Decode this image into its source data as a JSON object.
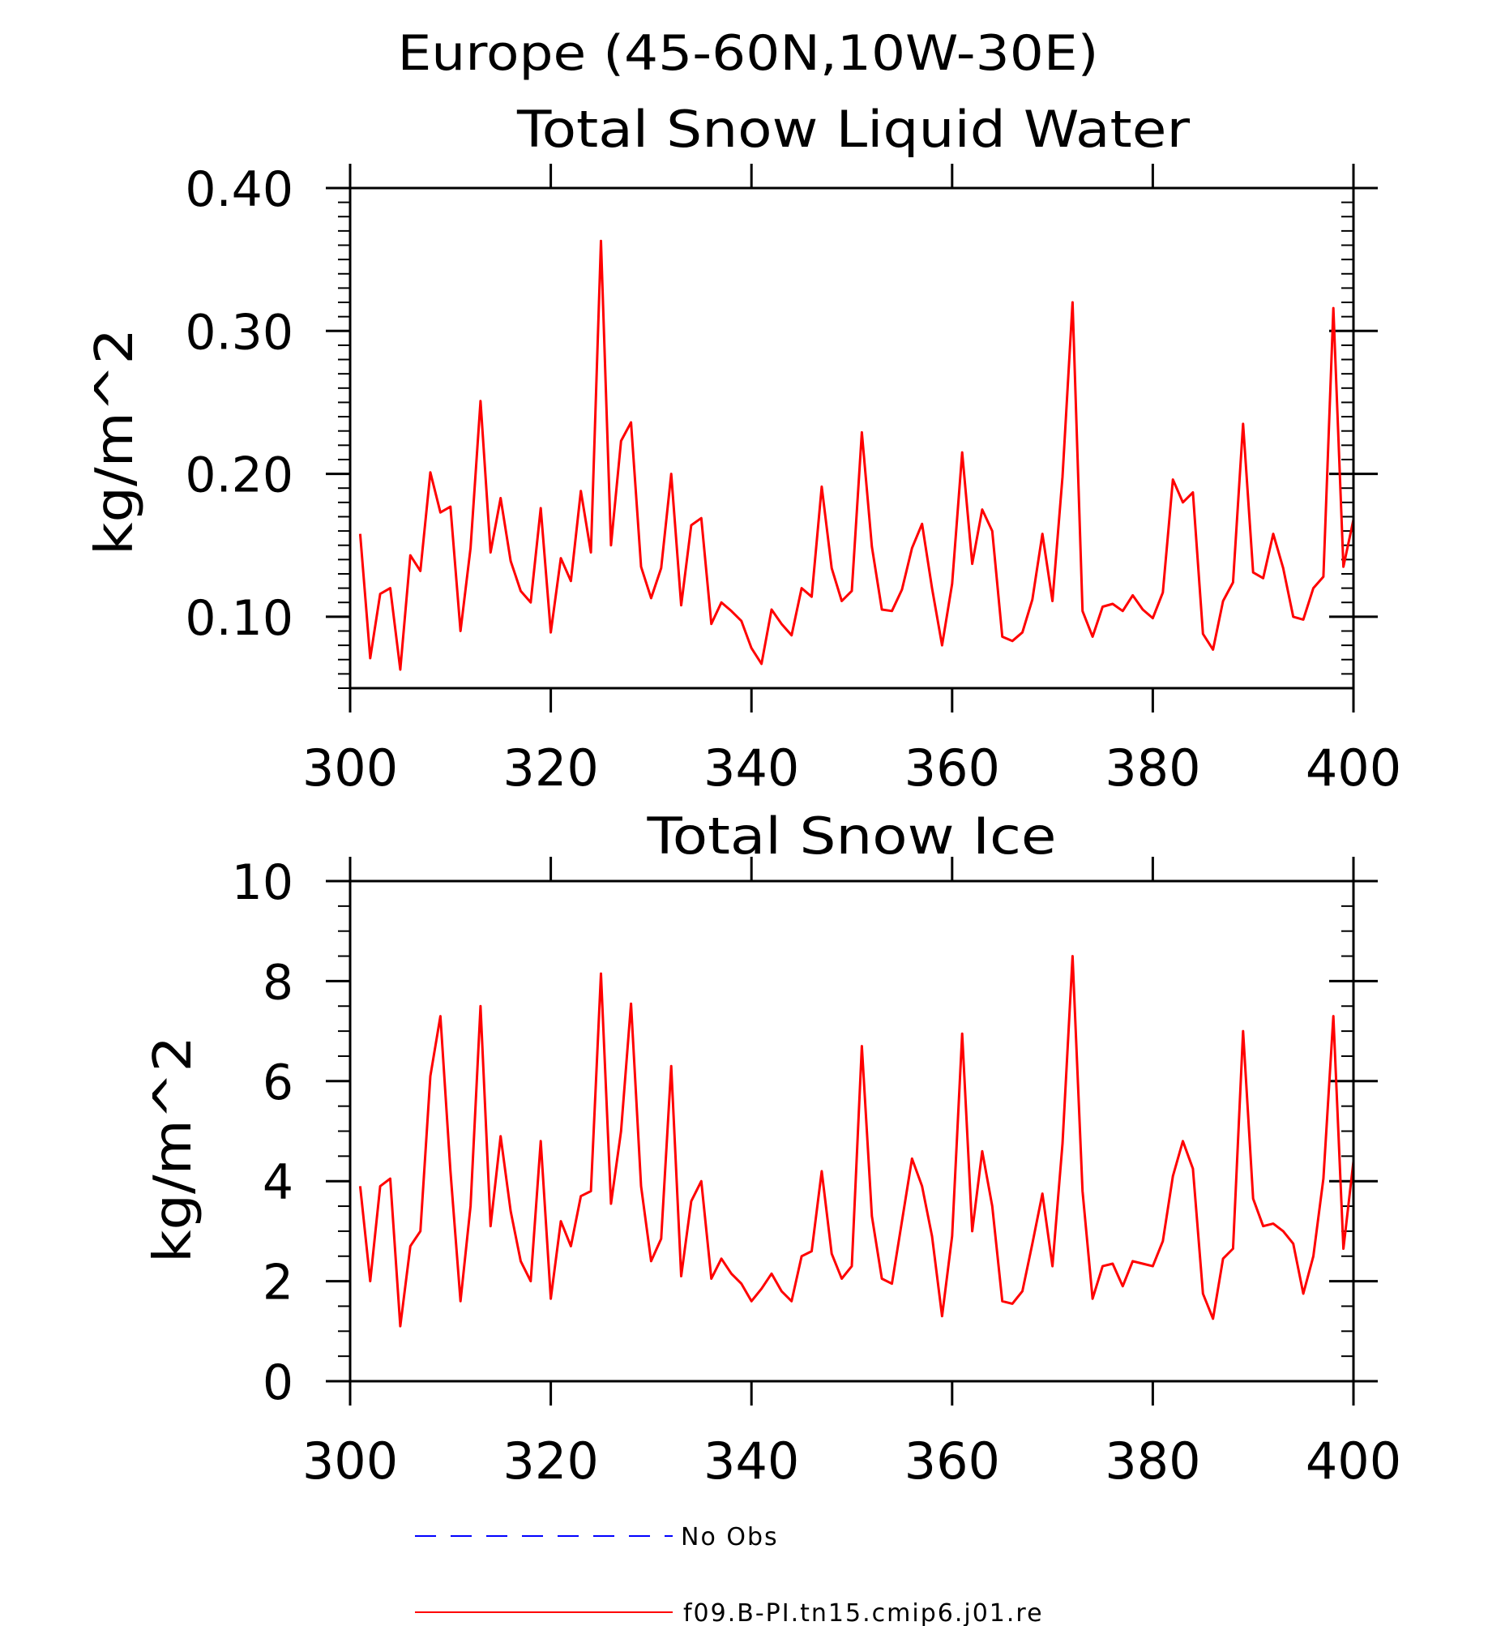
{
  "figure_title": "Europe (45-60N,10W-30E)",
  "colors": {
    "series_line": "#ff0000",
    "obs_line": "#0000ff",
    "axis": "#000000",
    "background": "#ffffff"
  },
  "chart_data": [
    {
      "type": "line",
      "title": "Total Snow Liquid Water",
      "xlabel": "",
      "ylabel": "kg/m^2",
      "xlim": [
        300,
        400
      ],
      "ylim": [
        0.05,
        0.4
      ],
      "xticks": [
        300,
        320,
        340,
        360,
        380,
        400
      ],
      "yticks": [
        0.1,
        0.2,
        0.3,
        0.4
      ],
      "ytick_labels": [
        "0.10",
        "0.20",
        "0.30",
        "0.40"
      ],
      "xtick_labels": [
        "300",
        "320",
        "340",
        "360",
        "380",
        "400"
      ],
      "grid": false,
      "series": [
        {
          "name": "f09.B-PI.tn15.cmip6.j01.re",
          "color": "#ff0000",
          "x_start": 301,
          "x_step": 1,
          "values": [
            0.158,
            0.071,
            0.116,
            0.12,
            0.063,
            0.143,
            0.132,
            0.201,
            0.173,
            0.177,
            0.09,
            0.148,
            0.251,
            0.145,
            0.183,
            0.139,
            0.118,
            0.11,
            0.176,
            0.089,
            0.141,
            0.125,
            0.188,
            0.145,
            0.363,
            0.15,
            0.223,
            0.236,
            0.135,
            0.113,
            0.134,
            0.2,
            0.108,
            0.164,
            0.169,
            0.095,
            0.11,
            0.104,
            0.097,
            0.078,
            0.067,
            0.105,
            0.095,
            0.087,
            0.12,
            0.114,
            0.191,
            0.134,
            0.111,
            0.118,
            0.229,
            0.149,
            0.105,
            0.104,
            0.119,
            0.148,
            0.165,
            0.12,
            0.08,
            0.123,
            0.215,
            0.137,
            0.175,
            0.16,
            0.086,
            0.083,
            0.089,
            0.112,
            0.158,
            0.111,
            0.198,
            0.32,
            0.104,
            0.086,
            0.107,
            0.109,
            0.104,
            0.115,
            0.105,
            0.099,
            0.117,
            0.196,
            0.18,
            0.187,
            0.088,
            0.077,
            0.111,
            0.124,
            0.235,
            0.131,
            0.127,
            0.158,
            0.134,
            0.1,
            0.098,
            0.12,
            0.128,
            0.316,
            0.135,
            0.168
          ]
        }
      ]
    },
    {
      "type": "line",
      "title": "Total Snow Ice",
      "xlabel": "",
      "ylabel": "kg/m^2",
      "xlim": [
        300,
        400
      ],
      "ylim": [
        0,
        10
      ],
      "xticks": [
        300,
        320,
        340,
        360,
        380,
        400
      ],
      "yticks": [
        0,
        2,
        4,
        6,
        8,
        10
      ],
      "ytick_labels": [
        "0",
        "2",
        "4",
        "6",
        "8",
        "10"
      ],
      "xtick_labels": [
        "300",
        "320",
        "340",
        "360",
        "380",
        "400"
      ],
      "grid": false,
      "series": [
        {
          "name": "f09.B-PI.tn15.cmip6.j01.re",
          "color": "#ff0000",
          "x_start": 301,
          "x_step": 1,
          "values": [
            3.9,
            2.0,
            3.9,
            4.05,
            1.1,
            2.7,
            3.0,
            6.1,
            7.3,
            4.2,
            1.6,
            3.5,
            7.5,
            3.1,
            4.9,
            3.4,
            2.4,
            2.0,
            4.8,
            1.65,
            3.2,
            2.7,
            3.7,
            3.8,
            8.15,
            3.55,
            5.0,
            7.55,
            3.9,
            2.4,
            2.85,
            6.3,
            2.1,
            3.6,
            4.0,
            2.05,
            2.45,
            2.15,
            1.95,
            1.6,
            1.85,
            2.15,
            1.8,
            1.6,
            2.5,
            2.6,
            4.2,
            2.55,
            2.05,
            2.3,
            6.7,
            3.3,
            2.05,
            1.95,
            3.2,
            4.45,
            3.9,
            2.9,
            1.3,
            2.9,
            6.95,
            3.0,
            4.6,
            3.5,
            1.6,
            1.55,
            1.8,
            2.75,
            3.75,
            2.3,
            4.75,
            8.5,
            3.8,
            1.65,
            2.3,
            2.35,
            1.9,
            2.4,
            2.35,
            2.3,
            2.8,
            4.1,
            4.8,
            4.25,
            1.75,
            1.25,
            2.45,
            2.65,
            7.0,
            3.65,
            3.1,
            3.15,
            3.0,
            2.75,
            1.75,
            2.5,
            4.05,
            7.3,
            2.65,
            4.4
          ]
        }
      ]
    }
  ],
  "legend": {
    "items": [
      {
        "label": "No Obs",
        "style": "dashed",
        "color": "#0000ff"
      },
      {
        "label": "f09.B-PI.tn15.cmip6.j01.re",
        "style": "solid",
        "color": "#ff0000"
      }
    ]
  }
}
